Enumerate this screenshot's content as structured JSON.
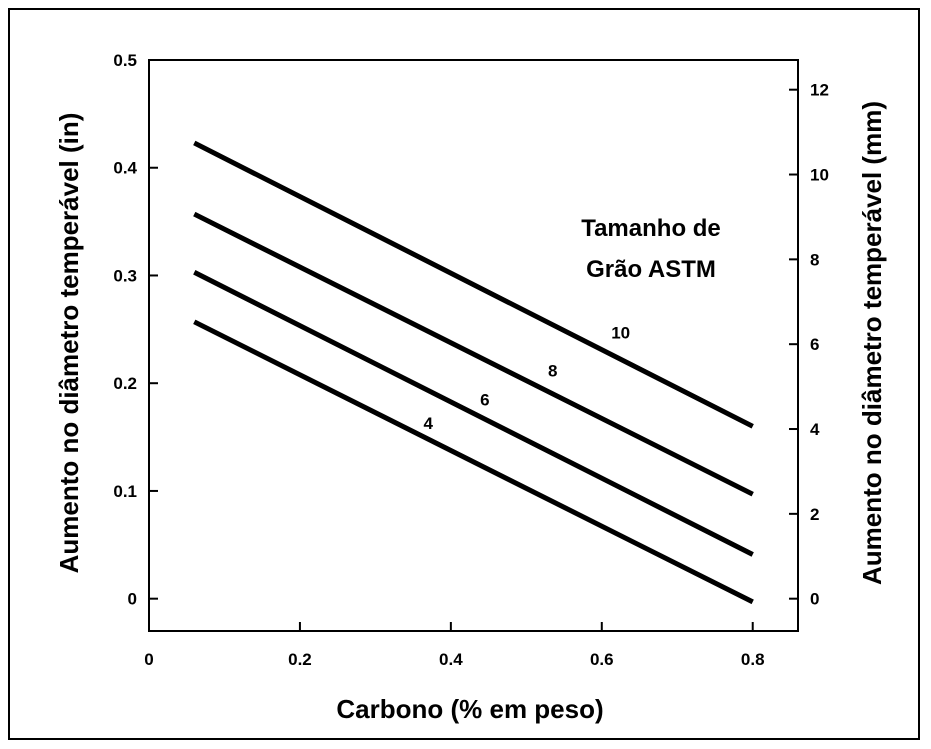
{
  "chart_data": {
    "type": "line",
    "xlabel": "Carbono (% em peso)",
    "ylabel": "Aumento no diâmetro temperável (in)",
    "y2label": "Aumento no diâmetro temperável (mm)",
    "xlim": [
      0,
      0.86
    ],
    "ylim": [
      -0.03,
      0.5
    ],
    "y2lim": [
      -0.762,
      12.7
    ],
    "x_ticks": [
      0,
      0.2,
      0.4,
      0.6,
      0.8
    ],
    "x_tick_labels": [
      "0",
      "0.2",
      "0.4",
      "0.6",
      "0.8"
    ],
    "y_ticks": [
      0,
      0.1,
      0.2,
      0.3,
      0.4,
      0.5
    ],
    "y_tick_labels": [
      "0",
      "0.1",
      "0.2",
      "0.3",
      "0.4",
      "0.5"
    ],
    "y2_ticks": [
      0,
      2,
      4,
      6,
      8,
      10,
      12
    ],
    "y2_tick_labels": [
      "0",
      "2",
      "4",
      "6",
      "8",
      "10",
      "12"
    ],
    "annotation": [
      "Tamanho de",
      "Grão ASTM"
    ],
    "series": [
      {
        "label": "10",
        "x": [
          0.06,
          0.8
        ],
        "y": [
          0.423,
          0.16
        ],
        "label_at": [
          0.625,
          0.247
        ]
      },
      {
        "label": "8",
        "x": [
          0.06,
          0.8
        ],
        "y": [
          0.357,
          0.097
        ],
        "label_at": [
          0.535,
          0.212
        ]
      },
      {
        "label": "6",
        "x": [
          0.06,
          0.8
        ],
        "y": [
          0.303,
          0.041
        ],
        "label_at": [
          0.445,
          0.185
        ]
      },
      {
        "label": "4",
        "x": [
          0.06,
          0.8
        ],
        "y": [
          0.257,
          -0.003
        ],
        "label_at": [
          0.37,
          0.163
        ]
      }
    ],
    "grid": false
  }
}
